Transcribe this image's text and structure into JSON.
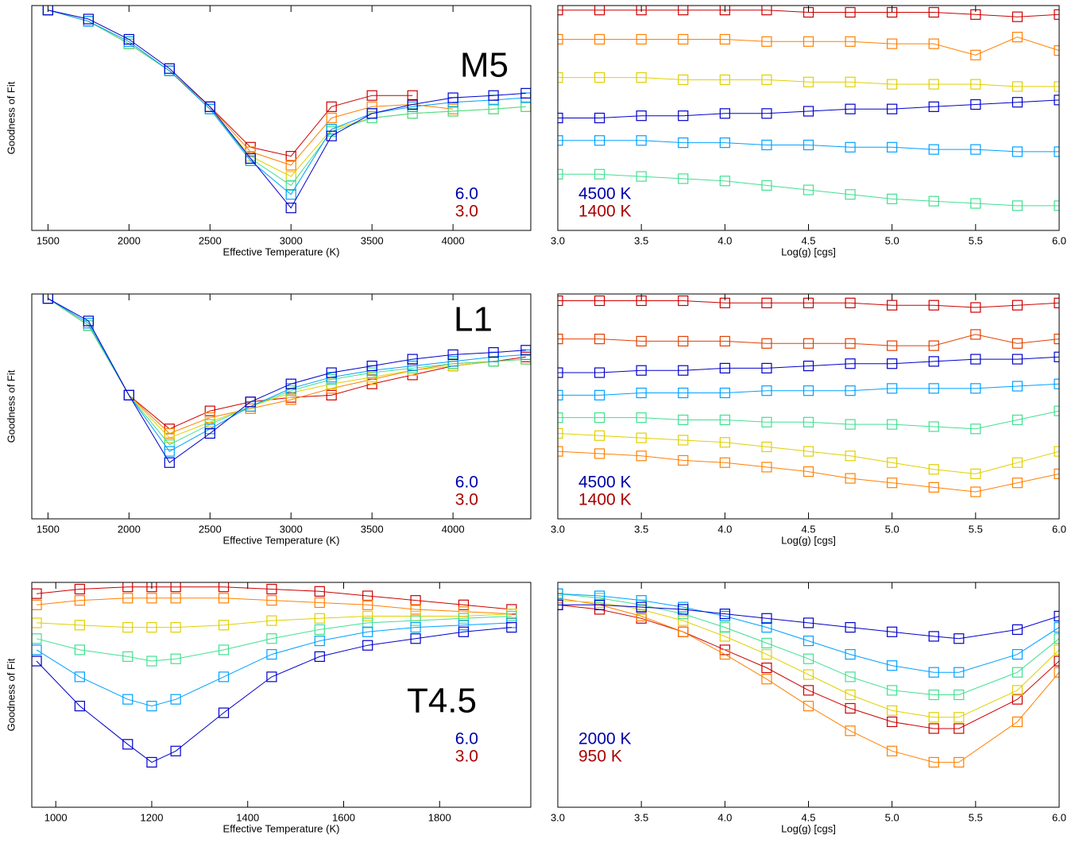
{
  "chart_data": [
    {
      "type": "line",
      "marker": "square",
      "label": "M5",
      "xlabel": "Effective Temperature (K)",
      "ylabel": "Goodness of Fit",
      "legend": [
        {
          "text": "6.0",
          "color": "#0000aa"
        },
        {
          "text": "3.0",
          "color": "#aa0000"
        }
      ],
      "xlim": [
        1400,
        4480
      ],
      "xticks": [
        1500,
        2000,
        2500,
        3000,
        3500,
        4000
      ],
      "ylim": [
        0,
        1
      ],
      "x": [
        1500,
        1750,
        2000,
        2250,
        2500,
        2750,
        3000,
        3250,
        3500,
        3750,
        4000,
        4250,
        4450
      ],
      "series": [
        {
          "color": "#cc0000",
          "values": [
            0.98,
            0.93,
            0.83,
            0.71,
            0.55,
            0.37,
            0.33,
            0.55,
            0.6,
            0.6,
            null,
            null,
            null
          ]
        },
        {
          "color": "#ff8000",
          "values": [
            0.98,
            0.93,
            0.83,
            0.71,
            0.55,
            0.35,
            0.29,
            0.5,
            0.55,
            0.56,
            0.54,
            null,
            null
          ]
        },
        {
          "color": "#e0d000",
          "values": [
            0.98,
            0.93,
            0.83,
            0.71,
            0.54,
            0.33,
            0.24,
            0.45,
            0.5,
            0.52,
            0.53,
            0.54,
            0.55
          ]
        },
        {
          "color": "#40e090",
          "values": [
            0.98,
            0.93,
            0.83,
            0.71,
            0.54,
            0.32,
            0.2,
            0.44,
            0.5,
            0.52,
            0.53,
            0.54,
            0.55
          ]
        },
        {
          "color": "#00a0ff",
          "values": [
            0.98,
            0.93,
            0.84,
            0.71,
            0.54,
            0.31,
            0.16,
            0.45,
            0.52,
            0.55,
            0.57,
            0.58,
            0.59
          ]
        },
        {
          "color": "#0000cc",
          "values": [
            0.98,
            0.94,
            0.85,
            0.72,
            0.55,
            0.32,
            0.1,
            0.42,
            0.52,
            0.56,
            0.59,
            0.6,
            0.61
          ]
        }
      ]
    },
    {
      "type": "line",
      "marker": "square",
      "xlabel": "Log(g) [cgs]",
      "legend": [
        {
          "text": "4500 K",
          "color": "#0000aa"
        },
        {
          "text": "1400 K",
          "color": "#aa0000"
        }
      ],
      "xlim": [
        3,
        6
      ],
      "xticks": [
        {
          "value": 3,
          "label": "3.0"
        },
        3.5,
        {
          "value": 4,
          "label": "4.0"
        },
        4.5,
        {
          "value": 5,
          "label": "5.0"
        },
        5.5,
        {
          "value": 6,
          "label": "6.0"
        }
      ],
      "ylim": [
        0,
        1
      ],
      "x": [
        3,
        3.25,
        3.5,
        3.75,
        4,
        4.25,
        4.5,
        4.75,
        5,
        5.25,
        5.5,
        5.75,
        6
      ],
      "series": [
        {
          "color": "#cc0000",
          "values": [
            0.98,
            0.98,
            0.98,
            0.98,
            0.98,
            0.98,
            0.97,
            0.97,
            0.97,
            0.97,
            0.96,
            0.95,
            0.96
          ]
        },
        {
          "color": "#ff8000",
          "values": [
            0.85,
            0.85,
            0.85,
            0.85,
            0.85,
            0.84,
            0.84,
            0.84,
            0.83,
            0.83,
            0.78,
            0.86,
            0.8
          ]
        },
        {
          "color": "#e0d000",
          "values": [
            0.68,
            0.68,
            0.68,
            0.67,
            0.67,
            0.67,
            0.66,
            0.66,
            0.65,
            0.65,
            0.65,
            0.64,
            0.64
          ]
        },
        {
          "color": "#40e090",
          "values": [
            0.25,
            0.25,
            0.24,
            0.23,
            0.22,
            0.2,
            0.18,
            0.16,
            0.14,
            0.13,
            0.12,
            0.11,
            0.11
          ]
        },
        {
          "color": "#00a0ff",
          "values": [
            0.4,
            0.4,
            0.4,
            0.39,
            0.39,
            0.38,
            0.38,
            0.37,
            0.37,
            0.36,
            0.36,
            0.35,
            0.35
          ]
        },
        {
          "color": "#0000cc",
          "values": [
            0.5,
            0.5,
            0.51,
            0.51,
            0.52,
            0.52,
            0.53,
            0.54,
            0.54,
            0.55,
            0.56,
            0.57,
            0.58
          ]
        }
      ]
    },
    {
      "type": "line",
      "marker": "square",
      "label": "L1",
      "xlabel": "Effective Temperature (K)",
      "ylabel": "Goodness of Fit",
      "legend": [
        {
          "text": "6.0",
          "color": "#0000aa"
        },
        {
          "text": "3.0",
          "color": "#aa0000"
        }
      ],
      "xlim": [
        1400,
        4480
      ],
      "xticks": [
        1500,
        2000,
        2500,
        3000,
        3500,
        4000
      ],
      "ylim": [
        0,
        1
      ],
      "x": [
        1500,
        1750,
        2000,
        2250,
        2500,
        2750,
        3000,
        3250,
        3500,
        3750,
        4000,
        4250,
        4450
      ],
      "series": [
        {
          "color": "#cc0000",
          "values": [
            0.98,
            0.86,
            0.55,
            0.4,
            0.48,
            0.52,
            0.54,
            0.55,
            0.6,
            0.64,
            0.68,
            0.7,
            0.72
          ]
        },
        {
          "color": "#ff8000",
          "values": [
            0.98,
            0.86,
            0.55,
            0.38,
            0.45,
            0.49,
            0.53,
            0.58,
            0.62,
            0.66,
            0.69,
            0.7,
            0.71
          ]
        },
        {
          "color": "#e0d000",
          "values": [
            0.98,
            0.86,
            0.55,
            0.36,
            0.43,
            0.5,
            0.56,
            0.6,
            0.63,
            0.66,
            0.68,
            0.7,
            0.71
          ]
        },
        {
          "color": "#40e090",
          "values": [
            0.98,
            0.86,
            0.55,
            0.33,
            0.42,
            0.5,
            0.57,
            0.62,
            0.65,
            0.67,
            0.69,
            0.7,
            0.71
          ]
        },
        {
          "color": "#00a0ff",
          "values": [
            0.98,
            0.87,
            0.55,
            0.3,
            0.4,
            0.5,
            0.58,
            0.63,
            0.66,
            0.68,
            0.7,
            0.72,
            0.73
          ]
        },
        {
          "color": "#0000cc",
          "values": [
            0.98,
            0.88,
            0.55,
            0.25,
            0.38,
            0.52,
            0.6,
            0.65,
            0.68,
            0.71,
            0.73,
            0.74,
            0.75
          ]
        }
      ]
    },
    {
      "type": "line",
      "marker": "square",
      "xlabel": "Log(g) [cgs]",
      "legend": [
        {
          "text": "4500 K",
          "color": "#0000aa"
        },
        {
          "text": "1400 K",
          "color": "#aa0000"
        }
      ],
      "xlim": [
        3,
        6
      ],
      "xticks": [
        {
          "value": 3,
          "label": "3.0"
        },
        3.5,
        {
          "value": 4,
          "label": "4.0"
        },
        4.5,
        {
          "value": 5,
          "label": "5.0"
        },
        5.5,
        {
          "value": 6,
          "label": "6.0"
        }
      ],
      "ylim": [
        0,
        1
      ],
      "x": [
        3,
        3.25,
        3.5,
        3.75,
        4,
        4.25,
        4.5,
        4.75,
        5,
        5.25,
        5.5,
        5.75,
        6
      ],
      "series": [
        {
          "color": "#cc0000",
          "values": [
            0.97,
            0.97,
            0.97,
            0.97,
            0.96,
            0.96,
            0.96,
            0.96,
            0.95,
            0.95,
            0.94,
            0.95,
            0.96
          ]
        },
        {
          "color": "#e04000",
          "values": [
            0.8,
            0.8,
            0.79,
            0.79,
            0.79,
            0.78,
            0.78,
            0.78,
            0.77,
            0.77,
            0.82,
            0.78,
            0.8
          ]
        },
        {
          "color": "#ff8000",
          "values": [
            0.3,
            0.29,
            0.28,
            0.26,
            0.25,
            0.23,
            0.21,
            0.18,
            0.16,
            0.14,
            0.12,
            0.16,
            0.2
          ]
        },
        {
          "color": "#e0d000",
          "values": [
            0.38,
            0.37,
            0.36,
            0.35,
            0.34,
            0.32,
            0.3,
            0.28,
            0.25,
            0.22,
            0.2,
            0.25,
            0.3
          ]
        },
        {
          "color": "#40e090",
          "values": [
            0.45,
            0.45,
            0.45,
            0.44,
            0.44,
            0.43,
            0.43,
            0.42,
            0.42,
            0.41,
            0.4,
            0.44,
            0.48
          ]
        },
        {
          "color": "#00a0ff",
          "values": [
            0.55,
            0.55,
            0.56,
            0.56,
            0.56,
            0.57,
            0.57,
            0.57,
            0.58,
            0.58,
            0.58,
            0.59,
            0.6
          ]
        },
        {
          "color": "#0000cc",
          "values": [
            0.65,
            0.65,
            0.66,
            0.66,
            0.67,
            0.67,
            0.68,
            0.69,
            0.69,
            0.7,
            0.71,
            0.71,
            0.72
          ]
        }
      ]
    },
    {
      "type": "line",
      "marker": "square",
      "label": "T4.5",
      "xlabel": "Effective Temperature (K)",
      "ylabel": "Goodness of Fit",
      "legend": [
        {
          "text": "6.0",
          "color": "#0000aa"
        },
        {
          "text": "3.0",
          "color": "#aa0000"
        }
      ],
      "xlim": [
        950,
        1990
      ],
      "xticks": [
        1000,
        1200,
        1400,
        1600,
        1800
      ],
      "ylim": [
        0,
        1
      ],
      "x": [
        960,
        1050,
        1150,
        1200,
        1250,
        1350,
        1450,
        1550,
        1650,
        1750,
        1850,
        1950
      ],
      "series": [
        {
          "color": "#cc0000",
          "values": [
            0.95,
            0.97,
            0.98,
            0.98,
            0.98,
            0.98,
            0.97,
            0.96,
            0.94,
            0.92,
            0.9,
            0.88
          ]
        },
        {
          "color": "#ff8000",
          "values": [
            0.9,
            0.92,
            0.93,
            0.93,
            0.93,
            0.93,
            0.92,
            0.91,
            0.9,
            0.88,
            0.87,
            0.86
          ]
        },
        {
          "color": "#e0d000",
          "values": [
            0.82,
            0.81,
            0.8,
            0.8,
            0.8,
            0.81,
            0.83,
            0.84,
            0.85,
            0.85,
            0.85,
            0.86
          ]
        },
        {
          "color": "#40e090",
          "values": [
            0.75,
            0.7,
            0.67,
            0.65,
            0.66,
            0.7,
            0.75,
            0.79,
            0.82,
            0.83,
            0.84,
            0.85
          ]
        },
        {
          "color": "#00a0ff",
          "values": [
            0.7,
            0.58,
            0.48,
            0.45,
            0.48,
            0.58,
            0.68,
            0.74,
            0.78,
            0.8,
            0.81,
            0.82
          ]
        },
        {
          "color": "#0000cc",
          "values": [
            0.65,
            0.45,
            0.28,
            0.2,
            0.25,
            0.42,
            0.58,
            0.67,
            0.72,
            0.75,
            0.78,
            0.8
          ]
        }
      ]
    },
    {
      "type": "line",
      "marker": "square",
      "xlabel": "Log(g) [cgs]",
      "legend": [
        {
          "text": "2000 K",
          "color": "#0000aa"
        },
        {
          "text": "950 K",
          "color": "#aa0000"
        }
      ],
      "xlim": [
        3,
        6
      ],
      "xticks": [
        {
          "value": 3,
          "label": "3.0"
        },
        3.5,
        {
          "value": 4,
          "label": "4.0"
        },
        4.5,
        {
          "value": 5,
          "label": "5.0"
        },
        5.5,
        {
          "value": 6,
          "label": "6.0"
        }
      ],
      "ylim": [
        0,
        1
      ],
      "x": [
        3,
        3.25,
        3.5,
        3.75,
        4,
        4.25,
        4.5,
        4.75,
        5,
        5.25,
        5.4,
        5.75,
        6
      ],
      "series": [
        {
          "color": "#cc0000",
          "values": [
            0.9,
            0.88,
            0.84,
            0.78,
            0.7,
            0.62,
            0.52,
            0.44,
            0.38,
            0.35,
            0.35,
            0.48,
            0.65
          ]
        },
        {
          "color": "#ff8000",
          "values": [
            0.93,
            0.9,
            0.85,
            0.78,
            0.68,
            0.57,
            0.45,
            0.34,
            0.25,
            0.2,
            0.2,
            0.38,
            0.6
          ]
        },
        {
          "color": "#e0d000",
          "values": [
            0.92,
            0.91,
            0.88,
            0.83,
            0.76,
            0.68,
            0.59,
            0.5,
            0.43,
            0.4,
            0.4,
            0.52,
            0.7
          ]
        },
        {
          "color": "#40e090",
          "values": [
            0.95,
            0.93,
            0.9,
            0.86,
            0.8,
            0.73,
            0.66,
            0.58,
            0.52,
            0.5,
            0.5,
            0.6,
            0.75
          ]
        },
        {
          "color": "#00a0ff",
          "values": [
            0.95,
            0.94,
            0.92,
            0.89,
            0.85,
            0.8,
            0.74,
            0.68,
            0.63,
            0.6,
            0.6,
            0.68,
            0.8
          ]
        },
        {
          "color": "#0000cc",
          "values": [
            0.9,
            0.9,
            0.89,
            0.88,
            0.86,
            0.84,
            0.82,
            0.8,
            0.78,
            0.76,
            0.75,
            0.79,
            0.85
          ]
        }
      ]
    }
  ]
}
